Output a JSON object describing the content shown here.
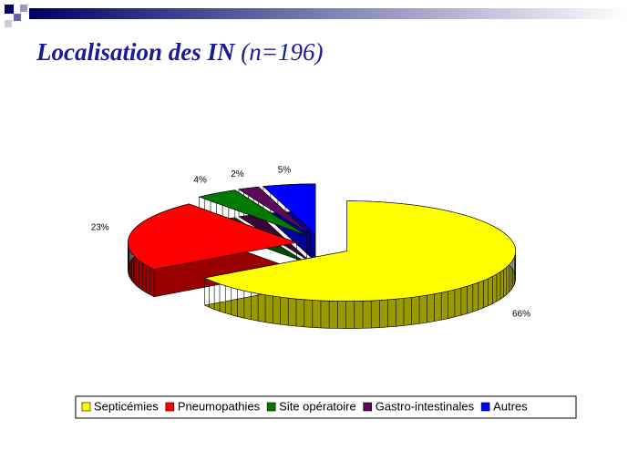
{
  "chart_data": {
    "type": "pie3d",
    "title": "Localisation des IN",
    "title_note": "(n=196)",
    "categories": [
      "Septicémies",
      "Pneumopathies",
      "Site opératoire",
      "Gastro-intestinales",
      "Autres"
    ],
    "values": [
      66,
      23,
      4,
      2,
      5
    ],
    "value_labels": [
      "66%",
      "23%",
      "4%",
      "2%",
      "5%"
    ],
    "colors": [
      "#ffff00",
      "#ff0000",
      "#007a00",
      "#5c0a5c",
      "#0000ff"
    ],
    "legend": "bottom"
  }
}
